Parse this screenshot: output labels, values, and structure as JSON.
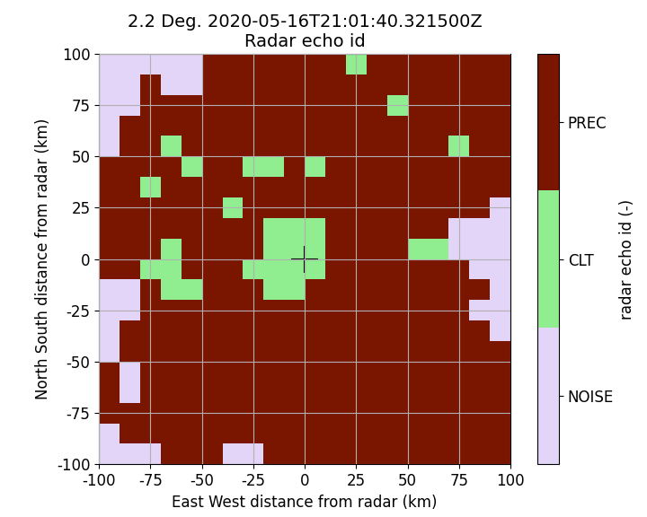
{
  "chart_data": {
    "type": "heatmap",
    "title": "2.2 Deg. 2020-05-16T21:01:40.321500Z\nRadar echo id",
    "x_label": "East West distance from radar (km)",
    "y_label": "North South distance from radar (km)",
    "xlim": [
      -100,
      100
    ],
    "ylim": [
      -100,
      100
    ],
    "xticks": [
      -100,
      -75,
      -50,
      -25,
      0,
      25,
      50,
      75,
      100
    ],
    "yticks": [
      -100,
      -75,
      -50,
      -25,
      0,
      25,
      50,
      75,
      100
    ],
    "grid": true,
    "x_edges": [
      -100,
      -90,
      -80,
      -70,
      -60,
      -50,
      -40,
      -30,
      -20,
      -10,
      0,
      10,
      20,
      30,
      40,
      50,
      60,
      70,
      80,
      90,
      100
    ],
    "y_edges": [
      100,
      90,
      80,
      70,
      60,
      50,
      40,
      30,
      20,
      10,
      0,
      -10,
      -20,
      -30,
      -40,
      -50,
      -60,
      -70,
      -80,
      -90,
      -100
    ],
    "cells": [
      [
        1,
        1,
        1,
        1,
        1,
        3,
        3,
        3,
        3,
        3,
        3,
        3,
        2,
        3,
        3,
        3,
        3,
        3,
        3,
        3
      ],
      [
        1,
        1,
        3,
        1,
        1,
        3,
        3,
        3,
        3,
        3,
        3,
        3,
        3,
        3,
        3,
        3,
        3,
        3,
        3,
        3
      ],
      [
        1,
        1,
        3,
        3,
        3,
        3,
        3,
        3,
        3,
        3,
        3,
        3,
        3,
        3,
        2,
        3,
        3,
        3,
        3,
        3
      ],
      [
        1,
        3,
        3,
        3,
        3,
        3,
        3,
        3,
        3,
        3,
        3,
        3,
        3,
        3,
        3,
        3,
        3,
        3,
        3,
        3
      ],
      [
        1,
        3,
        3,
        2,
        3,
        3,
        3,
        3,
        3,
        3,
        3,
        3,
        3,
        3,
        3,
        3,
        3,
        2,
        3,
        3
      ],
      [
        3,
        3,
        3,
        3,
        2,
        3,
        3,
        2,
        2,
        3,
        2,
        3,
        3,
        3,
        3,
        3,
        3,
        3,
        3,
        3
      ],
      [
        3,
        3,
        2,
        3,
        3,
        3,
        3,
        3,
        3,
        3,
        3,
        3,
        3,
        3,
        3,
        3,
        3,
        3,
        3,
        3
      ],
      [
        3,
        3,
        3,
        3,
        3,
        3,
        2,
        3,
        3,
        3,
        3,
        3,
        3,
        3,
        3,
        3,
        3,
        3,
        3,
        1
      ],
      [
        3,
        3,
        3,
        3,
        3,
        3,
        3,
        3,
        2,
        2,
        2,
        3,
        3,
        3,
        3,
        3,
        3,
        1,
        1,
        1
      ],
      [
        3,
        3,
        3,
        2,
        3,
        3,
        3,
        3,
        2,
        2,
        2,
        3,
        3,
        3,
        3,
        2,
        2,
        1,
        1,
        1
      ],
      [
        3,
        3,
        2,
        2,
        3,
        3,
        3,
        2,
        2,
        2,
        2,
        3,
        3,
        3,
        3,
        3,
        3,
        3,
        1,
        1
      ],
      [
        1,
        1,
        3,
        2,
        2,
        3,
        3,
        3,
        2,
        2,
        3,
        3,
        3,
        3,
        3,
        3,
        3,
        3,
        3,
        1
      ],
      [
        1,
        1,
        3,
        3,
        3,
        3,
        3,
        3,
        3,
        3,
        3,
        3,
        3,
        3,
        3,
        3,
        3,
        3,
        1,
        1
      ],
      [
        1,
        3,
        3,
        3,
        3,
        3,
        3,
        3,
        3,
        3,
        3,
        3,
        3,
        3,
        3,
        3,
        3,
        3,
        3,
        1
      ],
      [
        1,
        3,
        3,
        3,
        3,
        3,
        3,
        3,
        3,
        3,
        3,
        3,
        3,
        3,
        3,
        3,
        3,
        3,
        3,
        3
      ],
      [
        3,
        1,
        3,
        3,
        3,
        3,
        3,
        3,
        3,
        3,
        3,
        3,
        3,
        3,
        3,
        3,
        3,
        3,
        3,
        3
      ],
      [
        3,
        1,
        3,
        3,
        3,
        3,
        3,
        3,
        3,
        3,
        3,
        3,
        3,
        3,
        3,
        3,
        3,
        3,
        3,
        3
      ],
      [
        3,
        3,
        3,
        3,
        3,
        3,
        3,
        3,
        3,
        3,
        3,
        3,
        3,
        3,
        3,
        3,
        3,
        3,
        3,
        3
      ],
      [
        1,
        3,
        3,
        3,
        3,
        3,
        3,
        3,
        3,
        3,
        3,
        3,
        3,
        3,
        3,
        3,
        3,
        3,
        3,
        3
      ],
      [
        1,
        1,
        1,
        3,
        3,
        3,
        1,
        1,
        3,
        3,
        3,
        3,
        3,
        3,
        3,
        3,
        3,
        3,
        3,
        3
      ]
    ],
    "colorbar": {
      "label": "radar echo id (-)",
      "range": [
        0.5,
        3.5
      ],
      "colors": [
        "#e2d5f7",
        "#90ee90",
        "#7a1500"
      ],
      "ticks": [
        {
          "value": 1,
          "label": "NOISE"
        },
        {
          "value": 2,
          "label": "CLT"
        },
        {
          "value": 3,
          "label": "PREC"
        }
      ]
    },
    "radar": {
      "x": 0,
      "y": 0,
      "marker": "+",
      "color": "black"
    }
  }
}
